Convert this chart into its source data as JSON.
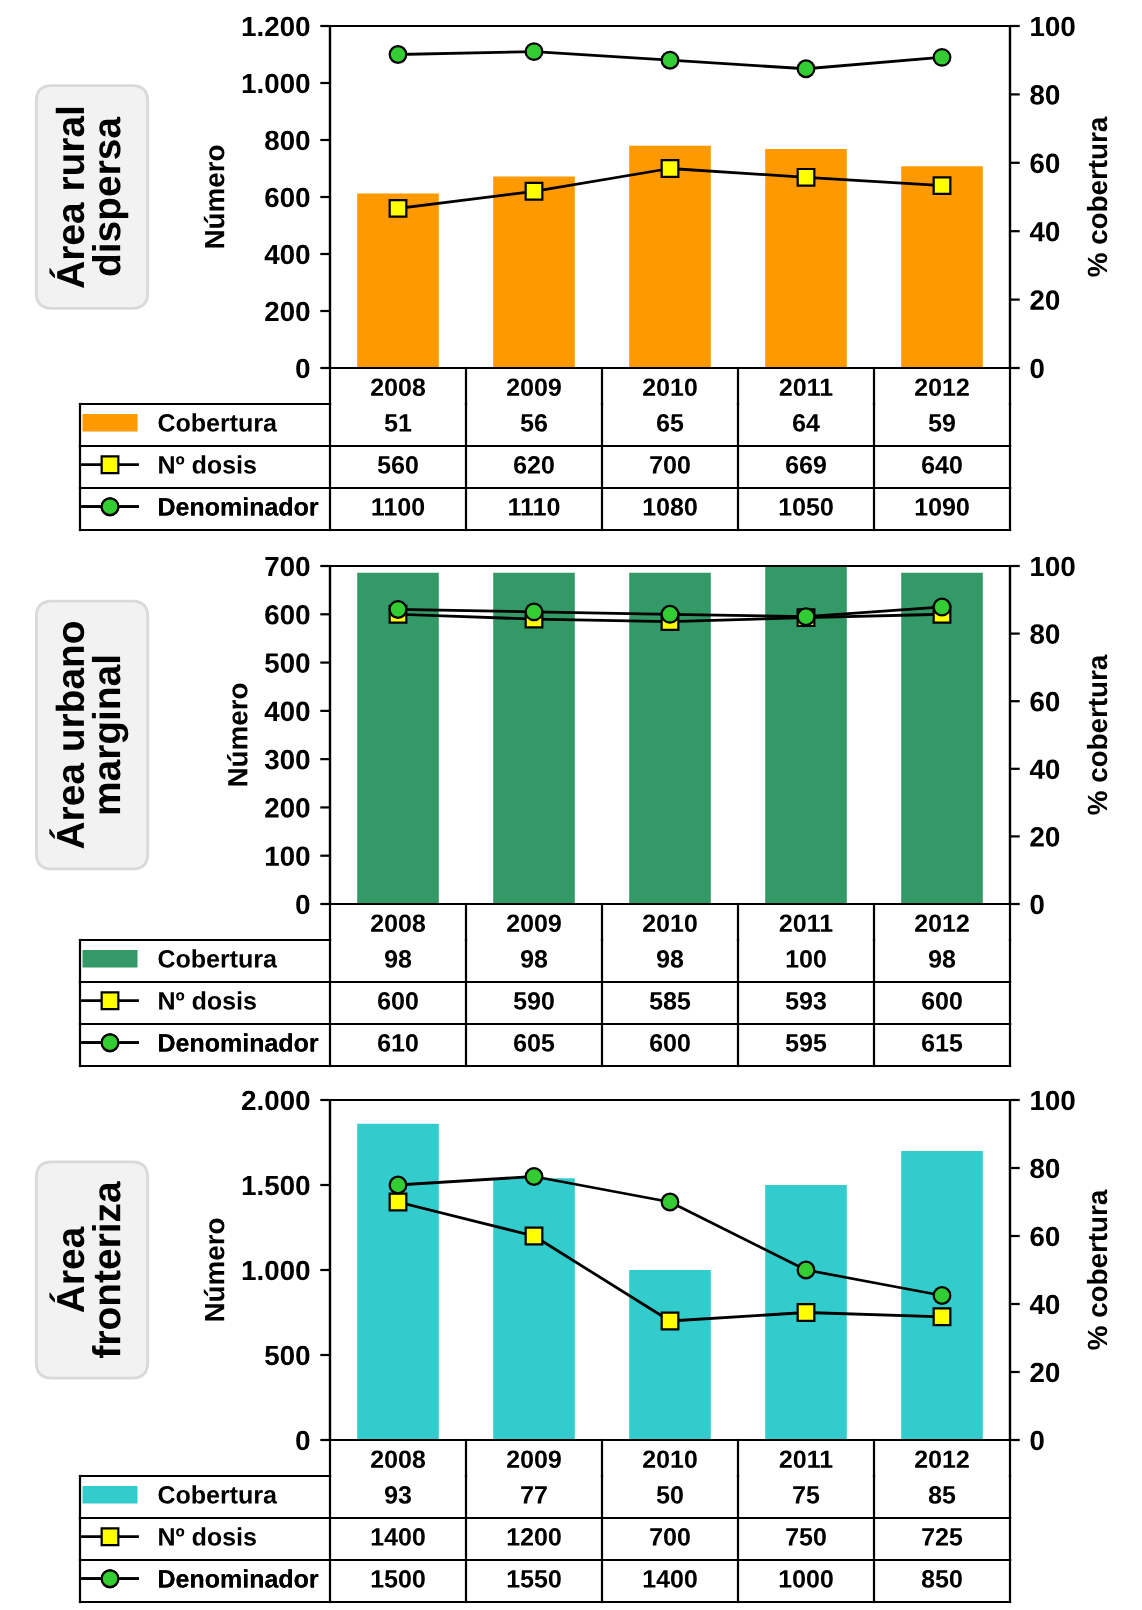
{
  "chart_data": [
    {
      "type": "bar",
      "title": "Área rural\ndispersa",
      "categories": [
        "2008",
        "2009",
        "2010",
        "2011",
        "2012"
      ],
      "ylabel": "Número",
      "y2label": "% cobertura",
      "ylim": [
        0,
        1200
      ],
      "yticks": [
        0,
        200,
        400,
        600,
        800,
        {
          "value": 1000,
          "label": "1.000"
        },
        {
          "value": 1200,
          "label": "1.200"
        }
      ],
      "y2lim": [
        0,
        100
      ],
      "y2ticks": [
        0,
        20,
        40,
        60,
        80,
        100
      ],
      "data_labels": true,
      "legend": "bottom",
      "grid": false,
      "series": [
        {
          "name": "Cobertura",
          "axis": "y2",
          "color": "#ff9900",
          "values": [
            51,
            56,
            65,
            64,
            59
          ]
        },
        {
          "name": "Nº dosis",
          "type": "line",
          "marker": "square",
          "color": "#ffff00",
          "values": [
            560,
            620,
            700,
            669,
            640
          ]
        },
        {
          "name": "Denominador",
          "type": "line",
          "marker": "circle",
          "color": "#33cc33",
          "values": [
            1100,
            1110,
            1080,
            1050,
            1090
          ]
        }
      ]
    },
    {
      "type": "bar",
      "title": "Área urbano\nmarginal",
      "categories": [
        "2008",
        "2009",
        "2010",
        "2011",
        "2012"
      ],
      "ylabel": "Número",
      "y2label": "% cobertura",
      "ylim": [
        0,
        700
      ],
      "yticks": [
        0,
        100,
        200,
        300,
        400,
        500,
        600,
        700
      ],
      "y2lim": [
        0,
        100
      ],
      "y2ticks": [
        0,
        20,
        40,
        60,
        80,
        100
      ],
      "data_labels": true,
      "legend": "bottom",
      "grid": false,
      "series": [
        {
          "name": "Cobertura",
          "axis": "y2",
          "color": "#339966",
          "values": [
            98,
            98,
            98,
            100,
            98
          ]
        },
        {
          "name": "Nº dosis",
          "type": "line",
          "marker": "square",
          "color": "#ffff00",
          "values": [
            600,
            590,
            585,
            593,
            600
          ]
        },
        {
          "name": "Denominador",
          "type": "line",
          "marker": "circle",
          "color": "#33cc33",
          "values": [
            610,
            605,
            600,
            595,
            615
          ]
        }
      ]
    },
    {
      "type": "bar",
      "title": "Área\nfronteriza",
      "categories": [
        "2008",
        "2009",
        "2010",
        "2011",
        "2012"
      ],
      "ylabel": "Número",
      "y2label": "% cobertura",
      "ylim": [
        0,
        2000
      ],
      "yticks": [
        0,
        500,
        {
          "value": 1000,
          "label": "1.000"
        },
        {
          "value": 1500,
          "label": "1.500"
        },
        {
          "value": 2000,
          "label": "2.000"
        }
      ],
      "y2lim": [
        0,
        100
      ],
      "y2ticks": [
        0,
        20,
        40,
        60,
        80,
        100
      ],
      "data_labels": true,
      "legend": "bottom",
      "grid": false,
      "series": [
        {
          "name": "Cobertura",
          "axis": "y2",
          "color": "#33cccc",
          "values": [
            93,
            77,
            50,
            75,
            85
          ]
        },
        {
          "name": "Nº dosis",
          "type": "line",
          "marker": "square",
          "color": "#ffff00",
          "values": [
            1400,
            1200,
            700,
            750,
            725
          ]
        },
        {
          "name": "Denominador",
          "type": "line",
          "marker": "circle",
          "color": "#33cc33",
          "values": [
            1500,
            1550,
            1400,
            1000,
            850
          ]
        }
      ]
    }
  ]
}
